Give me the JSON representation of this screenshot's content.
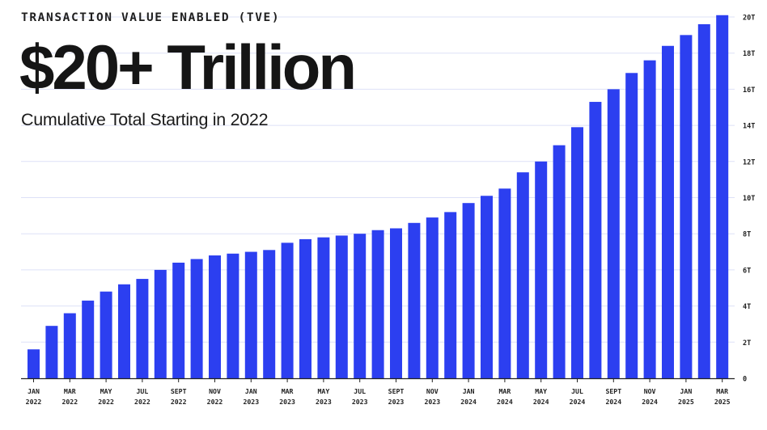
{
  "header": {
    "eyebrow": "TRANSACTION VALUE ENABLED (TVE)",
    "headline": "$20+ Trillion",
    "subhead": "Cumulative Total Starting in 2022"
  },
  "colors": {
    "bar": "#2c3ff0",
    "grid": "#dde1f7",
    "axis": "#222222",
    "text": "#222222"
  },
  "chart_data": {
    "type": "bar",
    "title": "$20+ Trillion",
    "subtitle": "Cumulative Total Starting in 2022",
    "xlabel": "",
    "ylabel": "",
    "ylim": [
      0,
      20
    ],
    "yticks": [
      0,
      2,
      4,
      6,
      8,
      10,
      12,
      14,
      16,
      18,
      20
    ],
    "ytick_labels": [
      "0",
      "2T",
      "4T",
      "6T",
      "8T",
      "10T",
      "12T",
      "14T",
      "16T",
      "18T",
      "20T"
    ],
    "grid": true,
    "categories": [
      "JAN 2022",
      "FEB 2022",
      "MAR 2022",
      "APR 2022",
      "MAY 2022",
      "JUN 2022",
      "JUL 2022",
      "AUG 2022",
      "SEPT 2022",
      "OCT 2022",
      "NOV 2022",
      "DEC 2022",
      "JAN 2023",
      "FEB 2023",
      "MAR 2023",
      "APR 2023",
      "MAY 2023",
      "JUN 2023",
      "JUL 2023",
      "AUG 2023",
      "SEPT 2023",
      "OCT 2023",
      "NOV 2023",
      "DEC 2023",
      "JAN 2024",
      "FEB 2024",
      "MAR 2024",
      "APR 2024",
      "MAY 2024",
      "JUN 2024",
      "JUL 2024",
      "AUG 2024",
      "SEPT 2024",
      "OCT 2024",
      "NOV 2024",
      "DEC 2024",
      "JAN 2025",
      "FEB 2025",
      "MAR 2025"
    ],
    "xtick_labels": [
      {
        "index": 0,
        "month": "JAN",
        "year": "2022"
      },
      {
        "index": 2,
        "month": "MAR",
        "year": "2022"
      },
      {
        "index": 4,
        "month": "MAY",
        "year": "2022"
      },
      {
        "index": 6,
        "month": "JUL",
        "year": "2022"
      },
      {
        "index": 8,
        "month": "SEPT",
        "year": "2022"
      },
      {
        "index": 10,
        "month": "NOV",
        "year": "2022"
      },
      {
        "index": 12,
        "month": "JAN",
        "year": "2023"
      },
      {
        "index": 14,
        "month": "MAR",
        "year": "2023"
      },
      {
        "index": 16,
        "month": "MAY",
        "year": "2023"
      },
      {
        "index": 18,
        "month": "JUL",
        "year": "2023"
      },
      {
        "index": 20,
        "month": "SEPT",
        "year": "2023"
      },
      {
        "index": 22,
        "month": "NOV",
        "year": "2023"
      },
      {
        "index": 24,
        "month": "JAN",
        "year": "2024"
      },
      {
        "index": 26,
        "month": "MAR",
        "year": "2024"
      },
      {
        "index": 28,
        "month": "MAY",
        "year": "2024"
      },
      {
        "index": 30,
        "month": "JUL",
        "year": "2024"
      },
      {
        "index": 32,
        "month": "SEPT",
        "year": "2024"
      },
      {
        "index": 34,
        "month": "NOV",
        "year": "2024"
      },
      {
        "index": 36,
        "month": "JAN",
        "year": "2025"
      },
      {
        "index": 38,
        "month": "MAR",
        "year": "2025"
      }
    ],
    "series": [
      {
        "name": "Cumulative TVE (Trillions USD)",
        "values": [
          1.6,
          2.9,
          3.6,
          4.3,
          4.8,
          5.2,
          5.5,
          6.0,
          6.4,
          6.6,
          6.8,
          6.9,
          7.0,
          7.1,
          7.5,
          7.7,
          7.8,
          7.9,
          8.0,
          8.2,
          8.3,
          8.6,
          8.9,
          9.2,
          9.7,
          10.1,
          10.5,
          11.4,
          12.0,
          12.9,
          13.9,
          15.3,
          16.0,
          16.9,
          17.6,
          18.4,
          19.0,
          19.6,
          20.1
        ]
      }
    ]
  }
}
